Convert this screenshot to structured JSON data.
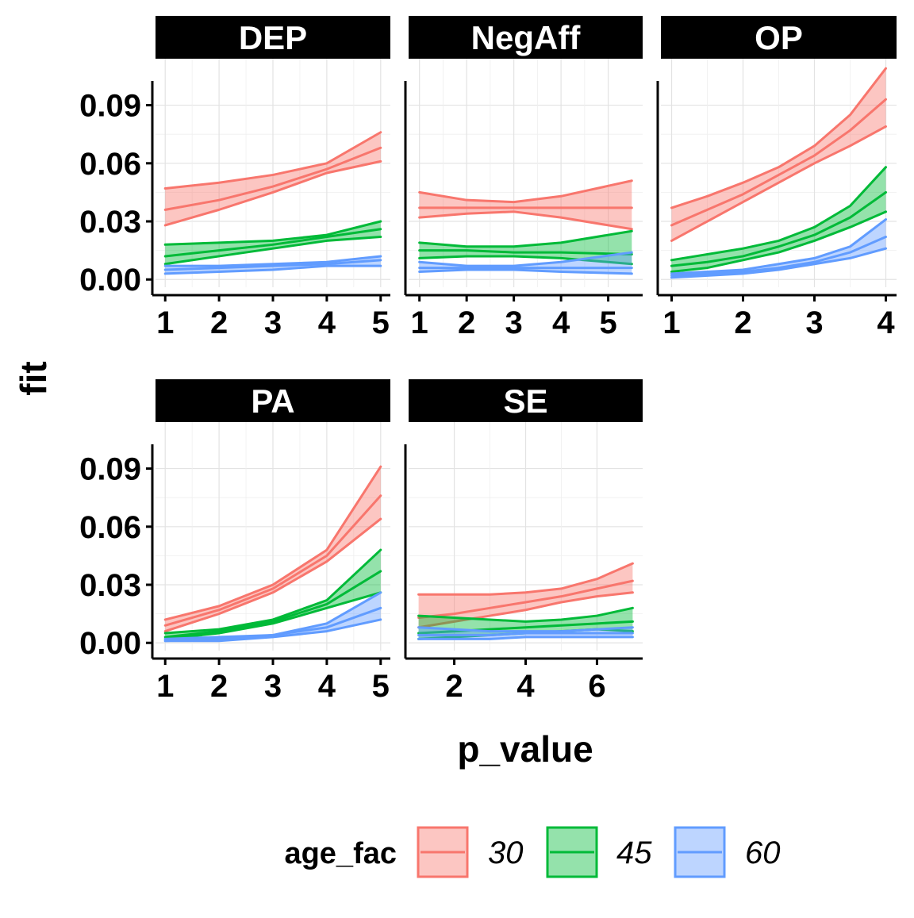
{
  "chart_data": {
    "type": "line",
    "xlabel": "p_value",
    "ylabel": "fit",
    "y_ticks": [
      0.0,
      0.03,
      0.06,
      0.09
    ],
    "y_tick_labels": [
      "0.00",
      "0.03",
      "0.06",
      "0.09"
    ],
    "ylim": [
      -0.004,
      0.114
    ],
    "grid": true,
    "legend": {
      "title": "age_fac",
      "position": "bottom",
      "entries": [
        {
          "label": "30",
          "color": "#F8766D"
        },
        {
          "label": "45",
          "color": "#00BA38"
        },
        {
          "label": "60",
          "color": "#619CFF"
        }
      ]
    },
    "panels": [
      {
        "name": "DEP",
        "xlim": [
          0.82,
          5.18
        ],
        "x_ticks": [
          1,
          2,
          3,
          4,
          5
        ],
        "x_tick_labels": [
          "1",
          "2",
          "3",
          "4",
          "5"
        ],
        "series": [
          {
            "name": "30",
            "x": [
              1,
              2,
              3,
              4,
              5
            ],
            "fit": [
              0.036,
              0.041,
              0.048,
              0.057,
              0.068
            ],
            "lower": [
              0.028,
              0.036,
              0.045,
              0.055,
              0.061
            ],
            "upper": [
              0.047,
              0.05,
              0.054,
              0.06,
              0.076
            ]
          },
          {
            "name": "45",
            "x": [
              1,
              2,
              3,
              4,
              5
            ],
            "fit": [
              0.012,
              0.015,
              0.018,
              0.022,
              0.026
            ],
            "lower": [
              0.008,
              0.012,
              0.016,
              0.02,
              0.022
            ],
            "upper": [
              0.018,
              0.019,
              0.02,
              0.023,
              0.03
            ]
          },
          {
            "name": "60",
            "x": [
              1,
              2,
              3,
              4,
              5
            ],
            "fit": [
              0.005,
              0.006,
              0.007,
              0.008,
              0.01
            ],
            "lower": [
              0.003,
              0.004,
              0.005,
              0.007,
              0.007
            ],
            "upper": [
              0.007,
              0.007,
              0.008,
              0.009,
              0.012
            ]
          }
        ]
      },
      {
        "name": "NegAff",
        "xlim": [
          0.77,
          5.73
        ],
        "x_ticks": [
          1,
          2,
          3,
          4,
          5
        ],
        "x_tick_labels": [
          "1",
          "2",
          "3",
          "4",
          "5"
        ],
        "series": [
          {
            "name": "30",
            "x": [
              1,
              2,
              3,
              4,
              5.5
            ],
            "fit": [
              0.037,
              0.037,
              0.037,
              0.037,
              0.037
            ],
            "lower": [
              0.032,
              0.034,
              0.035,
              0.032,
              0.026
            ],
            "upper": [
              0.045,
              0.041,
              0.04,
              0.043,
              0.051
            ]
          },
          {
            "name": "45",
            "x": [
              1,
              2,
              3,
              4,
              5.5
            ],
            "fit": [
              0.015,
              0.015,
              0.014,
              0.014,
              0.013
            ],
            "lower": [
              0.011,
              0.012,
              0.012,
              0.011,
              0.008
            ],
            "upper": [
              0.019,
              0.017,
              0.017,
              0.019,
              0.025
            ]
          },
          {
            "name": "60",
            "x": [
              1,
              2,
              3,
              4,
              5.5
            ],
            "fit": [
              0.006,
              0.006,
              0.006,
              0.006,
              0.006
            ],
            "lower": [
              0.004,
              0.005,
              0.005,
              0.004,
              0.003
            ],
            "upper": [
              0.009,
              0.007,
              0.007,
              0.009,
              0.014
            ]
          }
        ]
      },
      {
        "name": "OP",
        "xlim": [
          0.85,
          4.15
        ],
        "x_ticks": [
          1,
          2,
          3,
          4
        ],
        "x_tick_labels": [
          "1",
          "2",
          "3",
          "4"
        ],
        "series": [
          {
            "name": "30",
            "x": [
              1,
              1.5,
              2,
              2.5,
              3,
              3.5,
              4
            ],
            "fit": [
              0.028,
              0.036,
              0.044,
              0.054,
              0.064,
              0.077,
              0.093
            ],
            "lower": [
              0.02,
              0.03,
              0.04,
              0.05,
              0.06,
              0.069,
              0.079
            ],
            "upper": [
              0.037,
              0.043,
              0.05,
              0.058,
              0.069,
              0.085,
              0.109
            ]
          },
          {
            "name": "45",
            "x": [
              1,
              1.5,
              2,
              2.5,
              3,
              3.5,
              4
            ],
            "fit": [
              0.007,
              0.009,
              0.012,
              0.017,
              0.023,
              0.032,
              0.045
            ],
            "lower": [
              0.004,
              0.006,
              0.01,
              0.014,
              0.02,
              0.027,
              0.035
            ],
            "upper": [
              0.01,
              0.013,
              0.016,
              0.02,
              0.027,
              0.038,
              0.058
            ]
          },
          {
            "name": "60",
            "x": [
              1,
              1.5,
              2,
              2.5,
              3,
              3.5,
              4
            ],
            "fit": [
              0.002,
              0.003,
              0.004,
              0.006,
              0.009,
              0.014,
              0.022
            ],
            "lower": [
              0.001,
              0.002,
              0.003,
              0.005,
              0.008,
              0.011,
              0.016
            ],
            "upper": [
              0.003,
              0.004,
              0.005,
              0.008,
              0.011,
              0.017,
              0.031
            ]
          }
        ]
      },
      {
        "name": "PA",
        "xlim": [
          0.82,
          5.18
        ],
        "x_ticks": [
          1,
          2,
          3,
          4,
          5
        ],
        "x_tick_labels": [
          "1",
          "2",
          "3",
          "4",
          "5"
        ],
        "series": [
          {
            "name": "30",
            "x": [
              1,
              2,
              3,
              4,
              5
            ],
            "fit": [
              0.009,
              0.017,
              0.028,
              0.045,
              0.076
            ],
            "lower": [
              0.006,
              0.015,
              0.026,
              0.042,
              0.064
            ],
            "upper": [
              0.012,
              0.019,
              0.03,
              0.048,
              0.091
            ]
          },
          {
            "name": "45",
            "x": [
              1,
              2,
              3,
              4,
              5
            ],
            "fit": [
              0.003,
              0.006,
              0.011,
              0.02,
              0.037
            ],
            "lower": [
              0.002,
              0.005,
              0.01,
              0.018,
              0.026
            ],
            "upper": [
              0.005,
              0.007,
              0.012,
              0.022,
              0.048
            ]
          },
          {
            "name": "60",
            "x": [
              1,
              2,
              3,
              4,
              5
            ],
            "fit": [
              0.001,
              0.002,
              0.004,
              0.008,
              0.018
            ],
            "lower": [
              0.001,
              0.001,
              0.003,
              0.006,
              0.012
            ],
            "upper": [
              0.002,
              0.003,
              0.004,
              0.01,
              0.026
            ]
          }
        ]
      },
      {
        "name": "SE",
        "xlim": [
          0.72,
          7.28
        ],
        "x_ticks": [
          2,
          4,
          6
        ],
        "x_tick_labels": [
          "2",
          "4",
          "6"
        ],
        "series": [
          {
            "name": "30",
            "x": [
              1,
              2,
              3,
              4,
              5,
              6,
              7
            ],
            "fit": [
              0.013,
              0.015,
              0.018,
              0.021,
              0.024,
              0.028,
              0.032
            ],
            "lower": [
              0.008,
              0.011,
              0.014,
              0.017,
              0.021,
              0.024,
              0.026
            ],
            "upper": [
              0.025,
              0.025,
              0.025,
              0.026,
              0.028,
              0.033,
              0.041
            ]
          },
          {
            "name": "45",
            "x": [
              1,
              2,
              3,
              4,
              5,
              6,
              7
            ],
            "fit": [
              0.005,
              0.006,
              0.007,
              0.008,
              0.009,
              0.01,
              0.011
            ],
            "lower": [
              0.002,
              0.003,
              0.004,
              0.005,
              0.006,
              0.007,
              0.006
            ],
            "upper": [
              0.014,
              0.013,
              0.012,
              0.011,
              0.012,
              0.014,
              0.018
            ]
          },
          {
            "name": "60",
            "x": [
              1,
              2,
              3,
              4,
              5,
              6,
              7
            ],
            "fit": [
              0.004,
              0.004,
              0.004,
              0.005,
              0.005,
              0.005,
              0.005
            ],
            "lower": [
              0.002,
              0.002,
              0.002,
              0.003,
              0.003,
              0.003,
              0.003
            ],
            "upper": [
              0.008,
              0.007,
              0.006,
              0.006,
              0.006,
              0.007,
              0.008
            ]
          }
        ]
      }
    ]
  }
}
